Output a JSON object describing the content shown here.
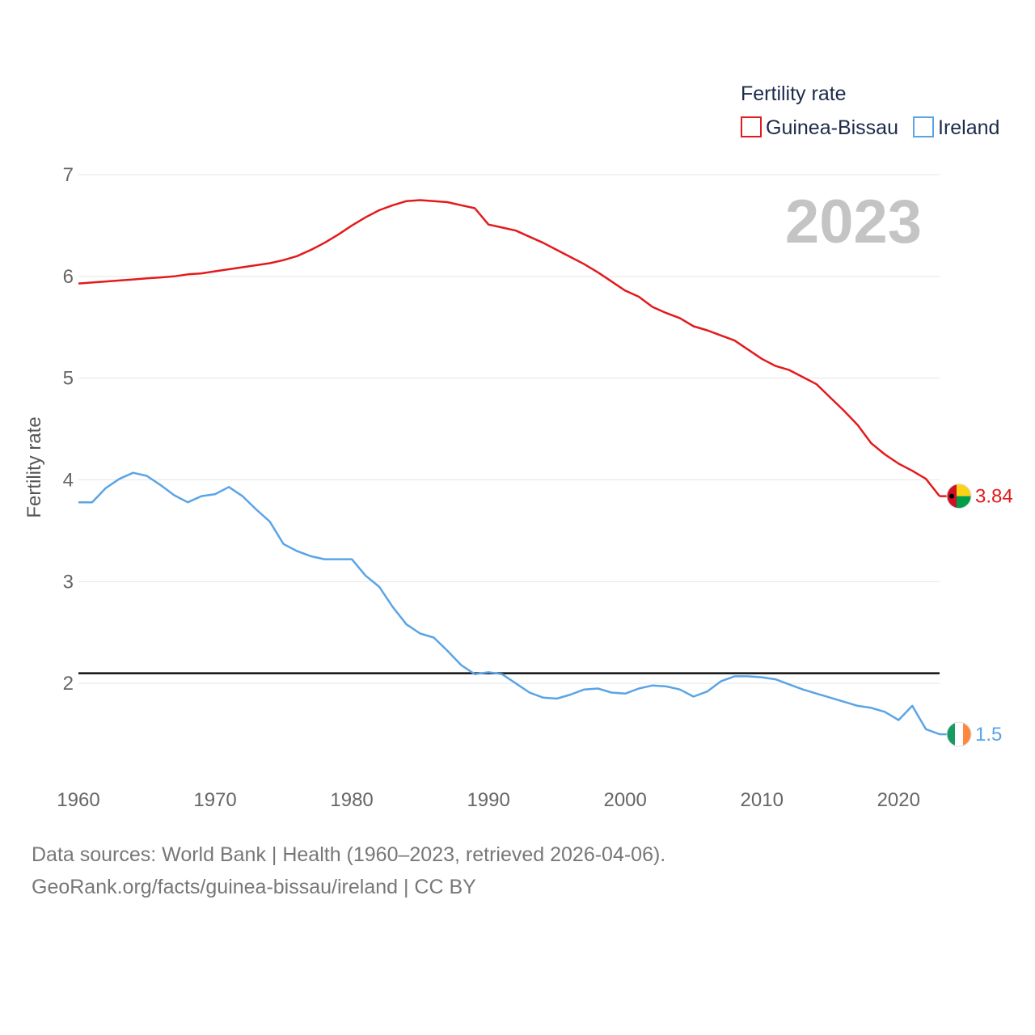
{
  "chart_data": {
    "type": "line",
    "year_label": "2023",
    "ylabel": "Fertility rate",
    "legend_title": "Fertility rate",
    "xlim": [
      1960,
      2023
    ],
    "ylim": [
      1.0,
      7.0
    ],
    "x_ticks": [
      1960,
      1970,
      1980,
      1990,
      2000,
      2010,
      2020
    ],
    "y_ticks": [
      2,
      3,
      4,
      5,
      6,
      7
    ],
    "reference_line": {
      "value": 2.1
    },
    "series": [
      {
        "name": "Guinea-Bissau",
        "color": "#e31a1c",
        "end_label": "3.84",
        "flag": "guinea-bissau-flag-icon",
        "x": [
          1960,
          1961,
          1962,
          1963,
          1964,
          1965,
          1966,
          1967,
          1968,
          1969,
          1970,
          1971,
          1972,
          1973,
          1974,
          1975,
          1976,
          1977,
          1978,
          1979,
          1980,
          1981,
          1982,
          1983,
          1984,
          1985,
          1986,
          1987,
          1988,
          1989,
          1990,
          1991,
          1992,
          1993,
          1994,
          1995,
          1996,
          1997,
          1998,
          1999,
          2000,
          2001,
          2002,
          2003,
          2004,
          2005,
          2006,
          2007,
          2008,
          2009,
          2010,
          2011,
          2012,
          2013,
          2014,
          2015,
          2016,
          2017,
          2018,
          2019,
          2020,
          2021,
          2022,
          2023
        ],
        "values": [
          5.93,
          5.94,
          5.95,
          5.96,
          5.97,
          5.98,
          5.99,
          6.0,
          6.02,
          6.03,
          6.05,
          6.07,
          6.09,
          6.11,
          6.13,
          6.16,
          6.2,
          6.26,
          6.33,
          6.41,
          6.5,
          6.58,
          6.65,
          6.7,
          6.74,
          6.75,
          6.74,
          6.73,
          6.7,
          6.67,
          6.51,
          6.48,
          6.45,
          6.39,
          6.33,
          6.26,
          6.19,
          6.12,
          6.04,
          5.95,
          5.86,
          5.8,
          5.7,
          5.64,
          5.59,
          5.51,
          5.47,
          5.42,
          5.37,
          5.28,
          5.19,
          5.12,
          5.08,
          5.01,
          4.94,
          4.81,
          4.68,
          4.54,
          4.36,
          4.25,
          4.16,
          4.09,
          4.01,
          3.84
        ]
      },
      {
        "name": "Ireland",
        "color": "#5aa4e6",
        "end_label": "1.5",
        "flag": "ireland-flag-icon",
        "x": [
          1960,
          1961,
          1962,
          1963,
          1964,
          1965,
          1966,
          1967,
          1968,
          1969,
          1970,
          1971,
          1972,
          1973,
          1974,
          1975,
          1976,
          1977,
          1978,
          1979,
          1980,
          1981,
          1982,
          1983,
          1984,
          1985,
          1986,
          1987,
          1988,
          1989,
          1990,
          1991,
          1992,
          1993,
          1994,
          1995,
          1996,
          1997,
          1998,
          1999,
          2000,
          2001,
          2002,
          2003,
          2004,
          2005,
          2006,
          2007,
          2008,
          2009,
          2010,
          2011,
          2012,
          2013,
          2014,
          2015,
          2016,
          2017,
          2018,
          2019,
          2020,
          2021,
          2022,
          2023
        ],
        "values": [
          3.78,
          3.78,
          3.92,
          4.01,
          4.07,
          4.04,
          3.95,
          3.85,
          3.78,
          3.84,
          3.86,
          3.93,
          3.84,
          3.71,
          3.59,
          3.37,
          3.3,
          3.25,
          3.22,
          3.22,
          3.22,
          3.06,
          2.95,
          2.75,
          2.58,
          2.49,
          2.45,
          2.32,
          2.18,
          2.09,
          2.11,
          2.09,
          2.0,
          1.91,
          1.86,
          1.85,
          1.89,
          1.94,
          1.95,
          1.91,
          1.9,
          1.95,
          1.98,
          1.97,
          1.94,
          1.87,
          1.92,
          2.02,
          2.07,
          2.07,
          2.06,
          2.04,
          1.99,
          1.94,
          1.9,
          1.86,
          1.82,
          1.78,
          1.76,
          1.72,
          1.64,
          1.78,
          1.55,
          1.5
        ]
      }
    ]
  },
  "footer": {
    "line1": "Data sources: World Bank | Health (1960–2023, retrieved 2026-04-06).",
    "line2": "GeoRank.org/facts/guinea-bissau/ireland | CC BY"
  }
}
